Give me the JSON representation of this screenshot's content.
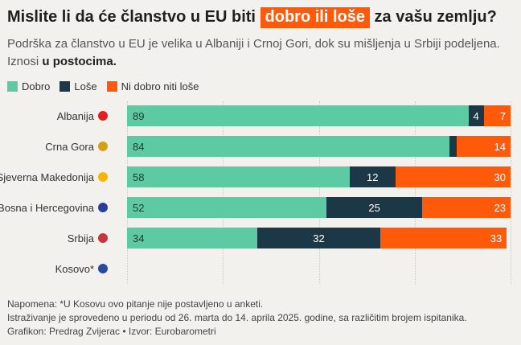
{
  "title": {
    "before": "Mislite li da će članstvo u EU biti",
    "highlight": "dobro ili loše",
    "after": "za vašu zemlju?"
  },
  "subtitle": {
    "line1": "Podrška za članstvo u EU je velika u Albaniji i Crnoj Gori, dok su mišljenja u Srbiji podeljena.",
    "line2_prefix": "Iznosi",
    "line2_bold": "u postocima."
  },
  "colors": {
    "good": "#5ccba4",
    "bad": "#1c3745",
    "neutral": "#ff5a0a"
  },
  "chart_data": {
    "type": "bar",
    "orientation": "horizontal",
    "stacked": true,
    "legend_position": "top-left",
    "series": [
      {
        "name": "Dobro",
        "values": [
          89,
          84,
          58,
          52,
          34,
          null
        ]
      },
      {
        "name": "Loše",
        "values": [
          4,
          2,
          12,
          25,
          32,
          null
        ]
      },
      {
        "name": "Ni dobro niti loše",
        "values": [
          7,
          14,
          30,
          23,
          33,
          null
        ]
      }
    ],
    "categories": [
      {
        "label": "Albanija",
        "flag": "albania-flag-icon",
        "flag_color": "#e41e20"
      },
      {
        "label": "Crna Gora",
        "flag": "montenegro-flag-icon",
        "flag_color": "#d4a017"
      },
      {
        "label": "Sjeverna Makedonija",
        "flag": "north-macedonia-flag-icon",
        "flag_color": "#f7b500"
      },
      {
        "label": "Bosna i Hercegovina",
        "flag": "bosnia-flag-icon",
        "flag_color": "#2b3e9e"
      },
      {
        "label": "Srbija",
        "flag": "serbia-flag-icon",
        "flag_color": "#c6363c"
      },
      {
        "label": "Kosovo*",
        "flag": "kosovo-flag-icon",
        "flag_color": "#2a4b9b"
      }
    ],
    "data_labels": [
      [
        "89",
        "4",
        "7"
      ],
      [
        "84",
        "",
        "14"
      ],
      [
        "58",
        "12",
        "30"
      ],
      [
        "52",
        "25",
        "23"
      ],
      [
        "34",
        "32",
        "33"
      ],
      [
        "",
        "",
        ""
      ]
    ],
    "xlim": [
      0,
      100
    ]
  },
  "notes": {
    "line1": "Napomena: *U Kosovu ovo pitanje nije postavljeno u anketi.",
    "line2": "Istraživanje je sprovedeno u periodu od 26. marta do 14. aprila 2025. godine, sa različitim brojem ispitanika.",
    "line3": "Grafikon: Predrag Zvijerac • Izvor: Eurobarometri"
  }
}
